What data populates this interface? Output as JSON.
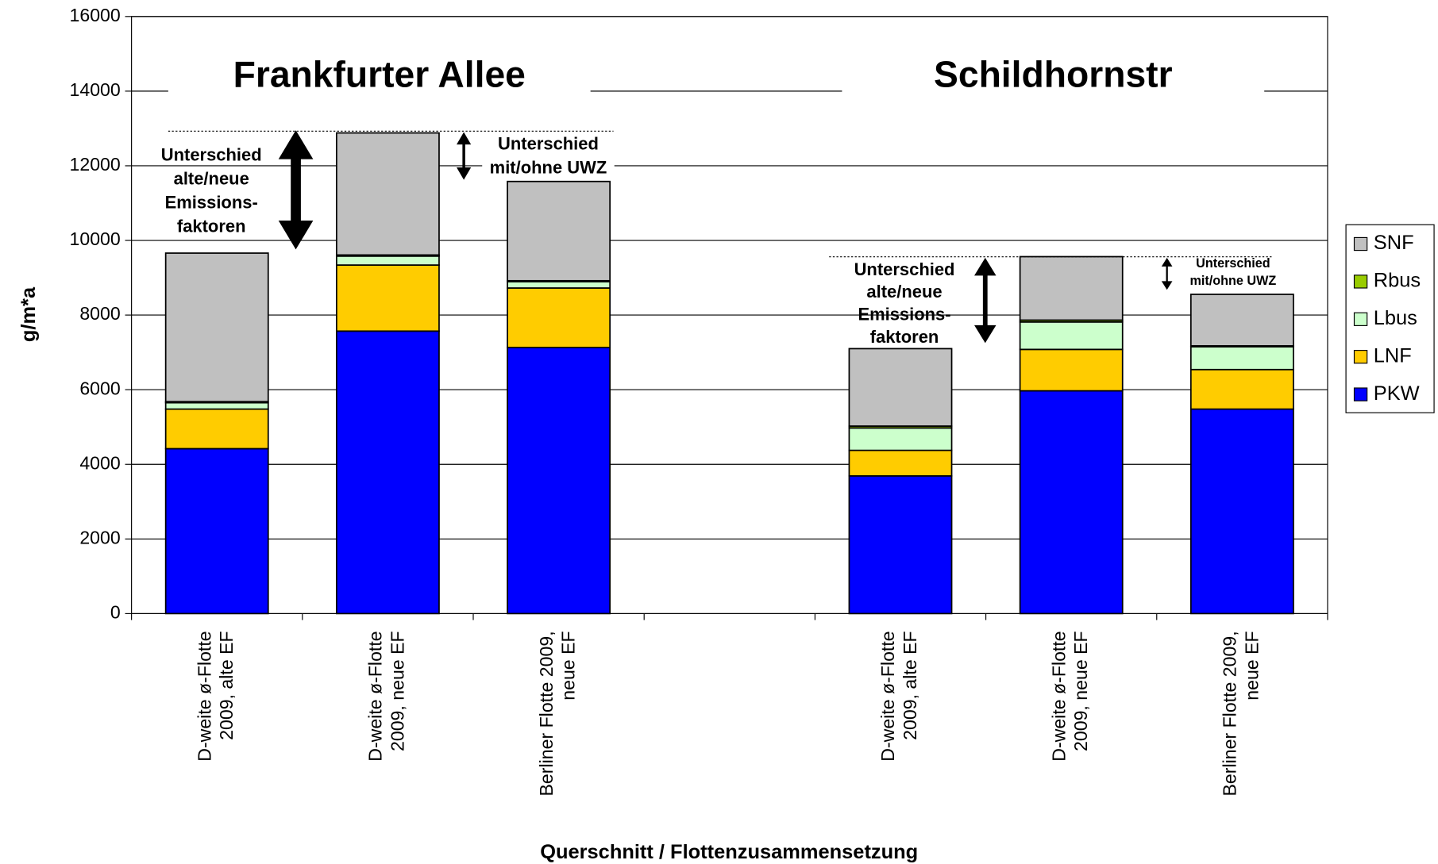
{
  "chart_data": {
    "type": "stacked_bar",
    "group_titles": [
      "Frankfurter Allee",
      "Schildhornstr"
    ],
    "annotations": [
      [
        "Unterschied",
        "alte/neue",
        "Emissions-",
        "faktoren"
      ],
      [
        "Unterschied",
        "mit/ohne UWZ"
      ],
      [
        "Unterschied",
        "alte/neue",
        "Emissions-",
        "faktoren"
      ],
      [
        "Unterschied",
        "mit/ohne UWZ"
      ]
    ],
    "y_label": "g/m*a",
    "x_label": "Querschnitt / Flottenzusammensetzung",
    "categories": [
      [
        "D-weite ø-Flotte",
        "2009, alte EF"
      ],
      [
        "D-weite ø-Flotte",
        "2009, neue EF"
      ],
      [
        "Berliner Flotte 2009,",
        "neue EF"
      ],
      null,
      [
        "D-weite ø-Flotte",
        "2009, alte EF"
      ],
      [
        "D-weite ø-Flotte",
        "2009, neue EF"
      ],
      [
        "Berliner Flotte 2009,",
        "neue EF"
      ]
    ],
    "series": [
      {
        "name": "PKW",
        "color": "#0000ff",
        "values": [
          4420,
          7570,
          7130,
          null,
          3690,
          5970,
          5480
        ]
      },
      {
        "name": "LNF",
        "color": "#ffcc00",
        "values": [
          1060,
          1770,
          1595,
          null,
          685,
          1110,
          1060
        ]
      },
      {
        "name": "Lbus",
        "color": "#ccffcc",
        "values": [
          170,
          240,
          170,
          null,
          600,
          735,
          610
        ]
      },
      {
        "name": "Rbus",
        "color": "#99cc00",
        "values": [
          30,
          30,
          25,
          null,
          50,
          50,
          25
        ]
      },
      {
        "name": "SNF",
        "color": "#c0c0c0",
        "values": [
          3980,
          3270,
          2660,
          null,
          2075,
          1700,
          1380
        ]
      }
    ],
    "ylim": [
      0,
      16000
    ],
    "yticks": [
      0,
      2000,
      4000,
      6000,
      8000,
      10000,
      12000,
      14000,
      16000
    ],
    "grid": true,
    "legend": "right"
  }
}
